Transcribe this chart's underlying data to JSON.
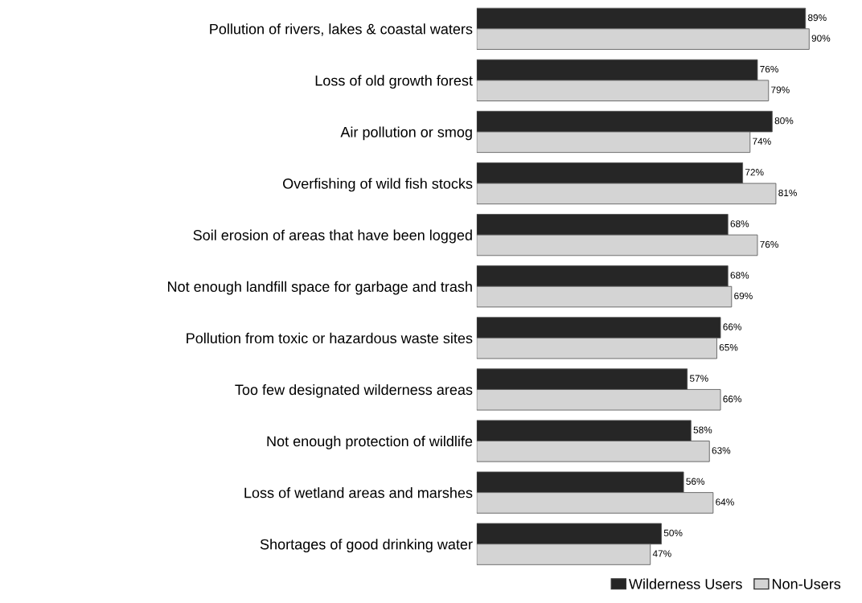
{
  "chart_data": {
    "type": "bar",
    "orientation": "horizontal",
    "categories": [
      "Pollution of rivers, lakes & coastal waters",
      "Loss of old growth forest",
      "Air pollution or smog",
      "Overfishing of wild fish stocks",
      "Soil erosion of areas that have been logged",
      "Not enough landfill space for garbage and trash",
      "Pollution from toxic or hazardous waste sites",
      "Too few designated wilderness areas",
      "Not enough protection of wildlife",
      "Loss of wetland areas and marshes",
      "Shortages of good drinking water"
    ],
    "series": [
      {
        "name": "Wilderness Users",
        "color": "#262626",
        "values": [
          89,
          76,
          80,
          72,
          68,
          68,
          66,
          57,
          58,
          56,
          50
        ],
        "value_labels": [
          "89%",
          "76%",
          "80%",
          "72%",
          "68%",
          "68%",
          "66%",
          "57%",
          "58%",
          "56%",
          "50%"
        ]
      },
      {
        "name": "Non-Users",
        "color": "#d4d4d4",
        "values": [
          90,
          79,
          74,
          81,
          76,
          69,
          65,
          66,
          63,
          64,
          47
        ],
        "value_labels": [
          "90%",
          "79%",
          "74%",
          "81%",
          "76%",
          "69%",
          "65%",
          "66%",
          "63%",
          "64%",
          "47%"
        ]
      }
    ],
    "legend": "bottom right",
    "tick_labels": "y",
    "grid": false
  }
}
